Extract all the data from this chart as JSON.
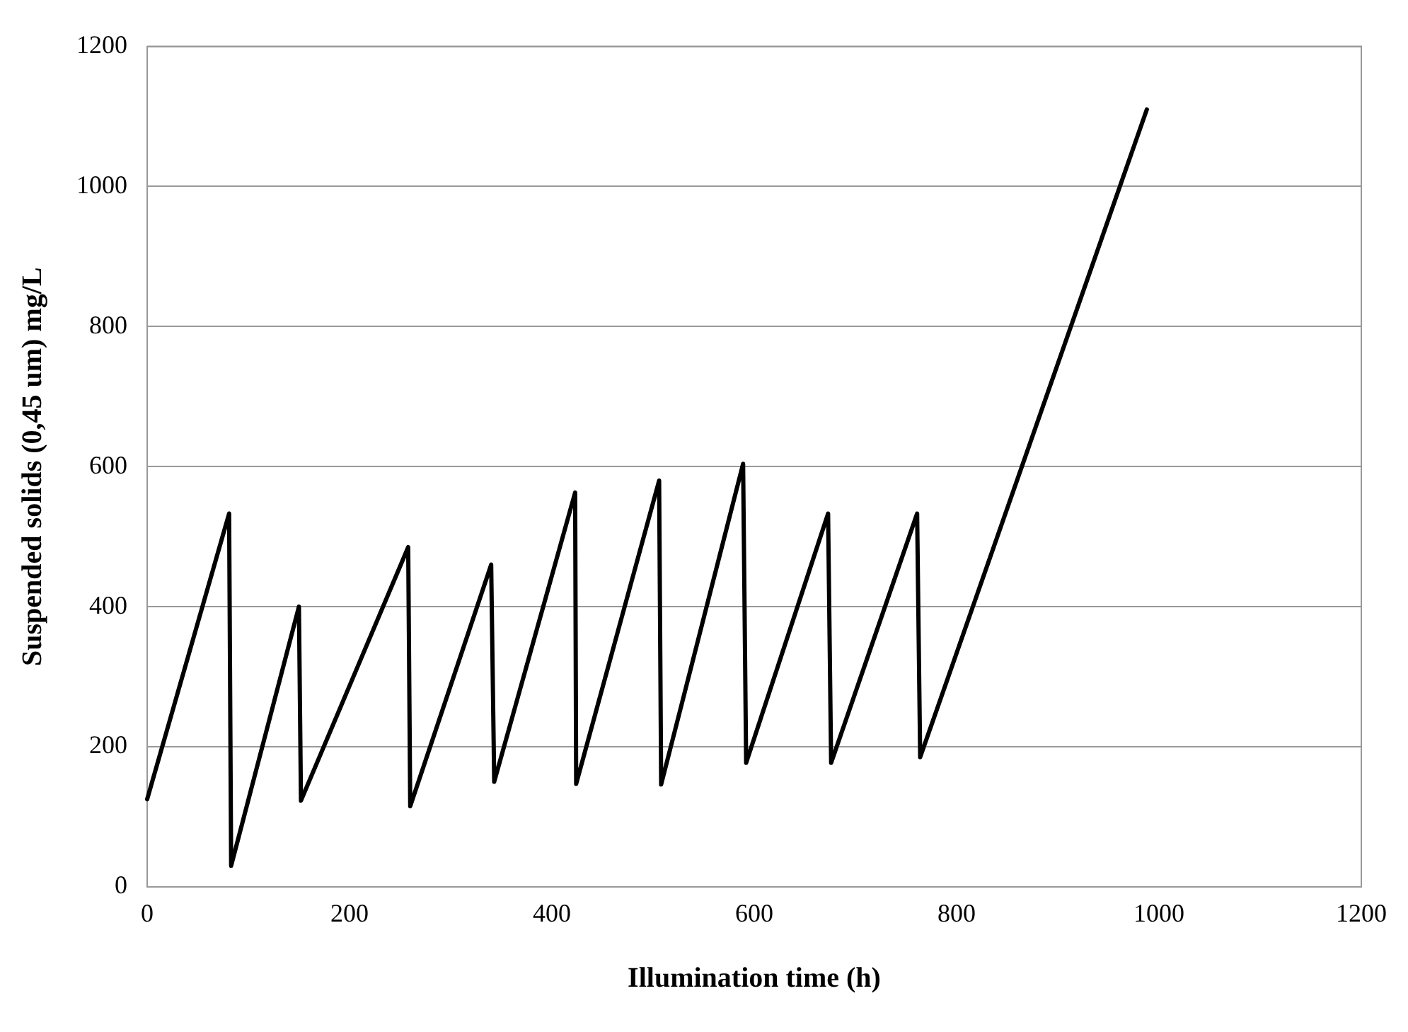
{
  "chart_data": {
    "type": "line",
    "xlabel": "Illumination time (h)",
    "ylabel": "Suspended solids (0,45 um) mg/L",
    "x": [
      0,
      81,
      83,
      150,
      152,
      258,
      260,
      340,
      343,
      423,
      424,
      506,
      508,
      589,
      592,
      673,
      676,
      761,
      764,
      988
    ],
    "series": [
      {
        "color": "#000000",
        "values": [
          125,
          533,
          30,
          400,
          123,
          485,
          115,
          460,
          150,
          563,
          147,
          580,
          146,
          604,
          177,
          533,
          177,
          533,
          185,
          1110
        ]
      }
    ],
    "xlim": [
      0,
      1200
    ],
    "xticks": [
      0,
      200,
      400,
      600,
      800,
      1000,
      1200
    ],
    "ylim": [
      0,
      1200
    ],
    "yticks": [
      0,
      200,
      400,
      600,
      800,
      1000,
      1200
    ],
    "grid": "y",
    "legend": false,
    "marker": "none",
    "line_style": "solid"
  }
}
